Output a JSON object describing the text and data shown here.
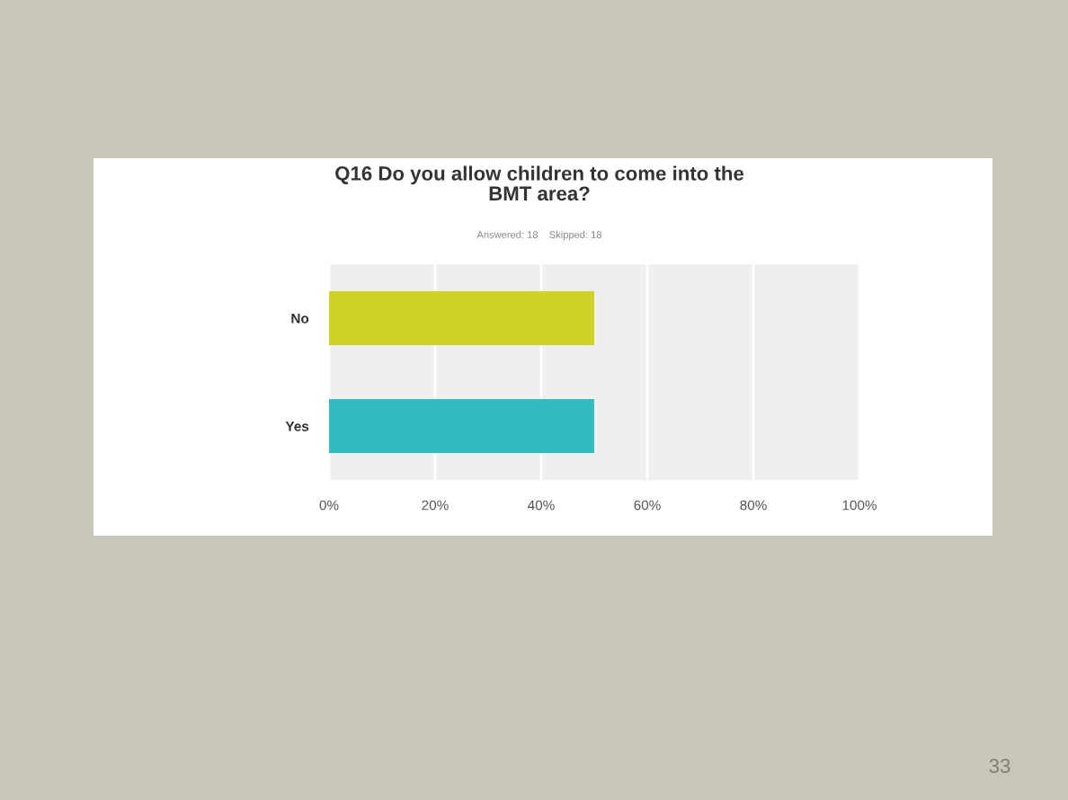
{
  "chart_data": {
    "type": "bar",
    "orientation": "horizontal",
    "title": "Q16 Do you allow children to come into the\nBMT area?",
    "subtitle": "Answered: 18    Skipped: 18",
    "categories": [
      "No",
      "Yes"
    ],
    "values": [
      50,
      50
    ],
    "colors": [
      "#cdd324",
      "#33bcbf"
    ],
    "xlim": [
      0,
      100
    ],
    "xticks": [
      {
        "value": 0,
        "label": "0%"
      },
      {
        "value": 20,
        "label": "20%"
      },
      {
        "value": 40,
        "label": "40%"
      },
      {
        "value": 60,
        "label": "60%"
      },
      {
        "value": 80,
        "label": "80%"
      },
      {
        "value": 100,
        "label": "100%"
      }
    ],
    "grid": "x",
    "legend": false,
    "annotations": [
      "33"
    ]
  }
}
